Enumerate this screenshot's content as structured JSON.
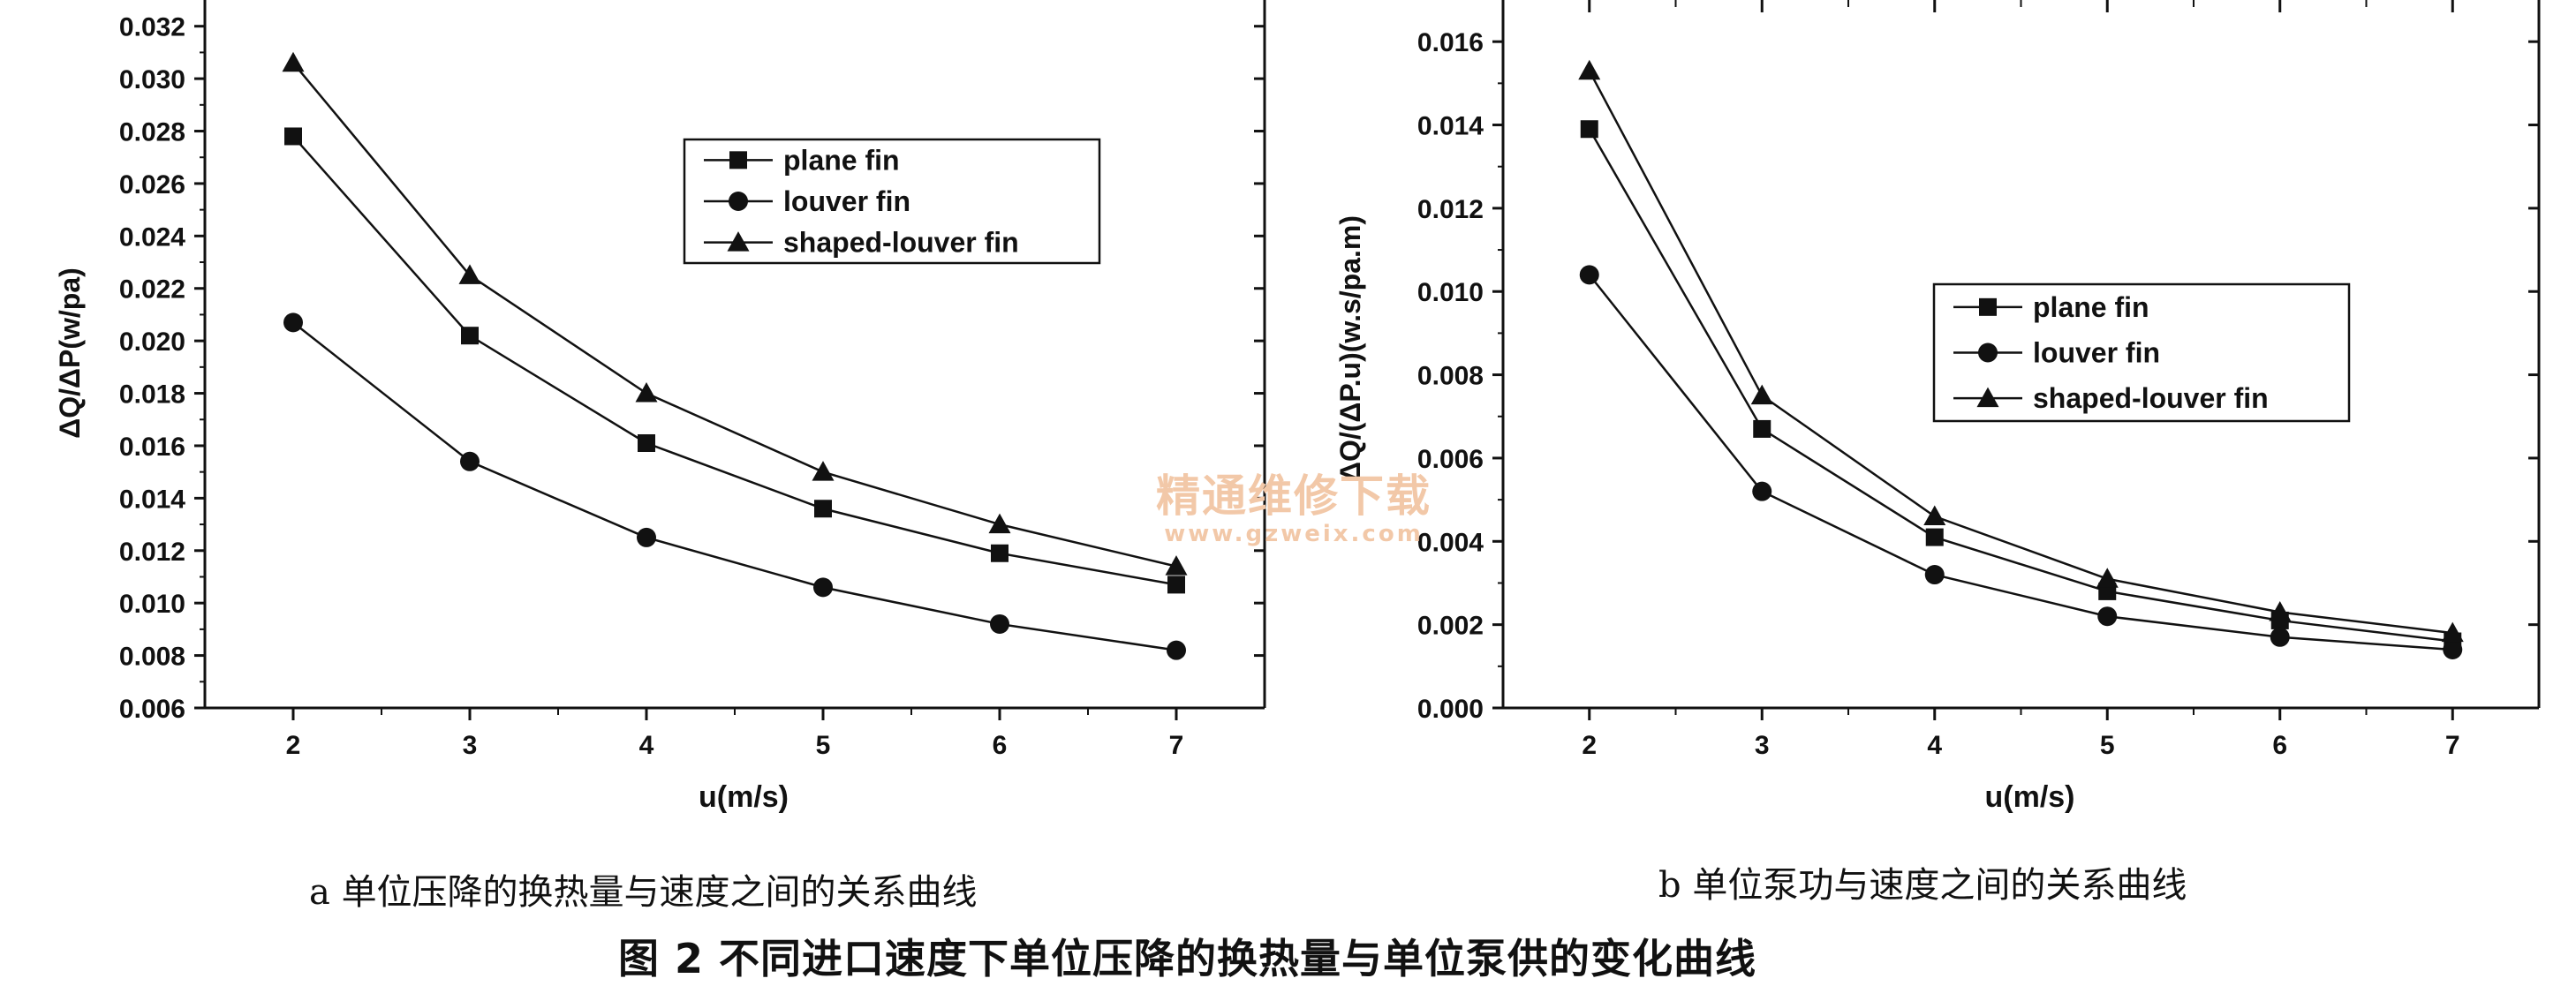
{
  "chart_data": [
    {
      "type": "line",
      "xlabel": "u(m/s)",
      "ylabel": "ΔQ/ΔP(w/pa)",
      "x": [
        2,
        3,
        4,
        5,
        6,
        7
      ],
      "xlim": [
        1.5,
        7.5
      ],
      "ylim": [
        0.006,
        0.033
      ],
      "yticks": [
        "0.006",
        "0.008",
        "0.010",
        "0.012",
        "0.014",
        "0.016",
        "0.018",
        "0.020",
        "0.022",
        "0.024",
        "0.026",
        "0.028",
        "0.030",
        "0.032"
      ],
      "xticks": [
        "2",
        "3",
        "4",
        "5",
        "6",
        "7"
      ],
      "legend_position": "top-right",
      "series": [
        {
          "name": "plane fin",
          "marker": "square",
          "values": [
            0.0278,
            0.0202,
            0.0161,
            0.0136,
            0.0119,
            0.0107
          ]
        },
        {
          "name": "louver fin",
          "marker": "circle",
          "values": [
            0.0207,
            0.0154,
            0.0125,
            0.0106,
            0.0092,
            0.0082
          ]
        },
        {
          "name": "shaped-louver fin",
          "marker": "triangle",
          "values": [
            0.0306,
            0.0225,
            0.018,
            0.015,
            0.013,
            0.0114
          ]
        }
      ]
    },
    {
      "type": "line",
      "xlabel": "u(m/s)",
      "ylabel": "ΔQ/(ΔP.u)(w.s/pa.m)",
      "x": [
        2,
        3,
        4,
        5,
        6,
        7
      ],
      "xlim": [
        1.5,
        7.5
      ],
      "ylim": [
        0.0,
        0.017
      ],
      "yticks": [
        "0.000",
        "0.002",
        "0.004",
        "0.006",
        "0.008",
        "0.010",
        "0.012",
        "0.014",
        "0.016"
      ],
      "xticks": [
        "2",
        "3",
        "4",
        "5",
        "6",
        "7"
      ],
      "legend_position": "center-right",
      "series": [
        {
          "name": "plane fin",
          "marker": "square",
          "values": [
            0.0139,
            0.0067,
            0.0041,
            0.0028,
            0.0021,
            0.0016
          ]
        },
        {
          "name": "louver fin",
          "marker": "circle",
          "values": [
            0.0104,
            0.0052,
            0.0032,
            0.0022,
            0.0017,
            0.0014
          ]
        },
        {
          "name": "shaped-louver fin",
          "marker": "triangle",
          "values": [
            0.0153,
            0.0075,
            0.0046,
            0.0031,
            0.0023,
            0.0018
          ]
        }
      ]
    }
  ],
  "captions": {
    "a": "a 单位压降的换热量与速度之间的关系曲线",
    "b": "b 单位泵功与速度之间的关系曲线",
    "figure": "图 2    不同进口速度下单位压降的换热量与单位泵供的变化曲线"
  },
  "watermark": {
    "line1": "精通维修下载",
    "line2": "www.gzweix.com"
  },
  "colors": {
    "ink": "#111111",
    "paper": "#ffffff",
    "watermark": "#f2c8a8"
  }
}
